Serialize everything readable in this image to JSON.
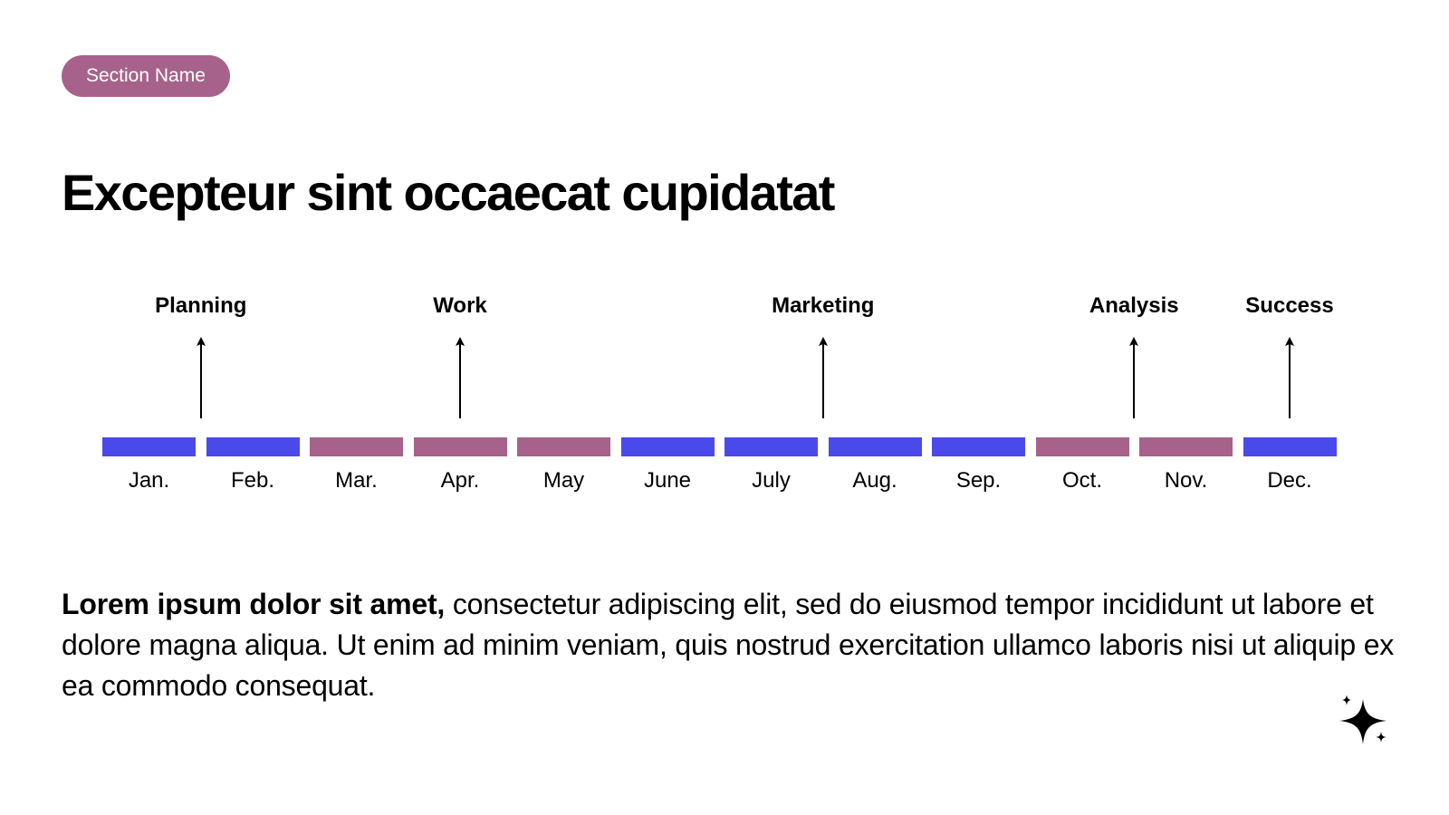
{
  "section_badge": {
    "label": "Section Name",
    "color": "#A6628A"
  },
  "title": "Excepteur sint occaecat cupidatat",
  "colors": {
    "blue": "#4A4AEA",
    "mauve": "#A6628A"
  },
  "timeline": {
    "months": [
      {
        "label": "Jan.",
        "color": "blue"
      },
      {
        "label": "Feb.",
        "color": "blue"
      },
      {
        "label": "Mar.",
        "color": "mauve"
      },
      {
        "label": "Apr.",
        "color": "mauve"
      },
      {
        "label": "May",
        "color": "mauve"
      },
      {
        "label": "June",
        "color": "blue"
      },
      {
        "label": "July",
        "color": "blue"
      },
      {
        "label": "Aug.",
        "color": "blue"
      },
      {
        "label": "Sep.",
        "color": "blue"
      },
      {
        "label": "Oct.",
        "color": "mauve"
      },
      {
        "label": "Nov.",
        "color": "mauve"
      },
      {
        "label": "Dec.",
        "color": "blue"
      }
    ],
    "milestones": [
      {
        "label": "Planning",
        "at_month": 1.5
      },
      {
        "label": "Work",
        "at_month": 4
      },
      {
        "label": "Marketing",
        "at_month": 7.5
      },
      {
        "label": "Analysis",
        "at_month": 10.5
      },
      {
        "label": "Success",
        "at_month": 12
      }
    ]
  },
  "body": {
    "bold_lead": "Lorem ipsum dolor sit amet,",
    "text": " consectetur adipiscing elit, sed do eiusmod tempor incididunt ut labore et dolore magna aliqua. Ut enim ad minim veniam, quis nostrud exercitation ullamco laboris nisi ut aliquip ex ea commodo consequat."
  },
  "decoration": {
    "icon": "sparkle-icon"
  }
}
